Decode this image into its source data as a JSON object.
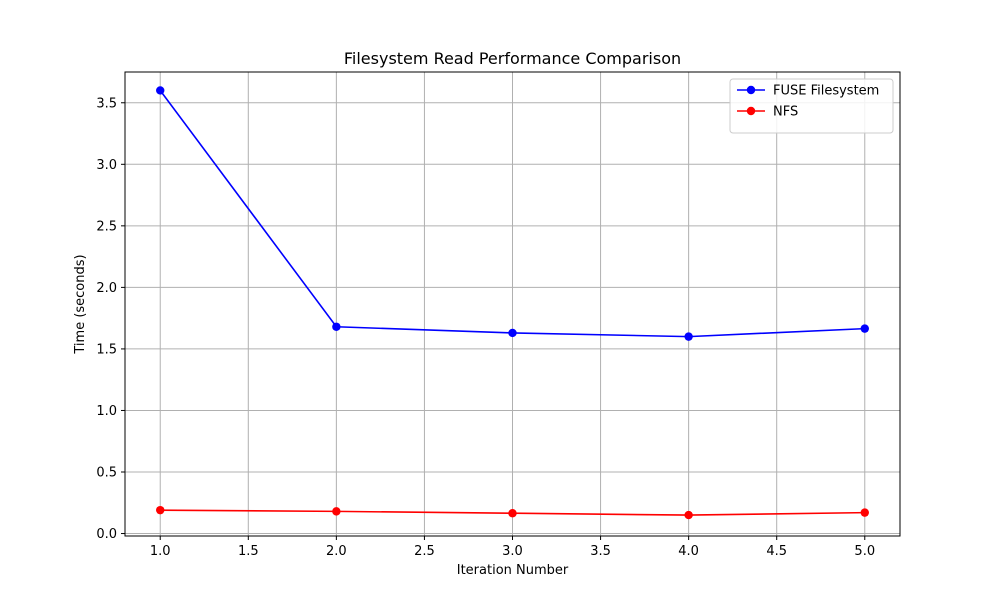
{
  "chart_data": {
    "type": "line",
    "title": "Filesystem Read Performance Comparison",
    "xlabel": "Iteration Number",
    "ylabel": "Time (seconds)",
    "xlim": [
      0.8,
      5.2
    ],
    "ylim": [
      -0.02,
      3.75
    ],
    "xticks": [
      1.0,
      1.5,
      2.0,
      2.5,
      3.0,
      3.5,
      4.0,
      4.5,
      5.0
    ],
    "xtick_labels": [
      "1.0",
      "1.5",
      "2.0",
      "2.5",
      "3.0",
      "3.5",
      "4.0",
      "4.5",
      "5.0"
    ],
    "yticks": [
      0.0,
      0.5,
      1.0,
      1.5,
      2.0,
      2.5,
      3.0,
      3.5
    ],
    "ytick_labels": [
      "0.0",
      "0.5",
      "1.0",
      "1.5",
      "2.0",
      "2.5",
      "3.0",
      "3.5"
    ],
    "grid": true,
    "legend_position": "top-right",
    "x": [
      1,
      2,
      3,
      4,
      5
    ],
    "series": [
      {
        "name": "FUSE Filesystem",
        "color": "#0000ff",
        "marker": "circle",
        "values": [
          3.6,
          1.68,
          1.63,
          1.6,
          1.665
        ]
      },
      {
        "name": "NFS",
        "color": "#ff0000",
        "marker": "circle",
        "values": [
          0.19,
          0.18,
          0.165,
          0.15,
          0.17
        ]
      }
    ]
  }
}
